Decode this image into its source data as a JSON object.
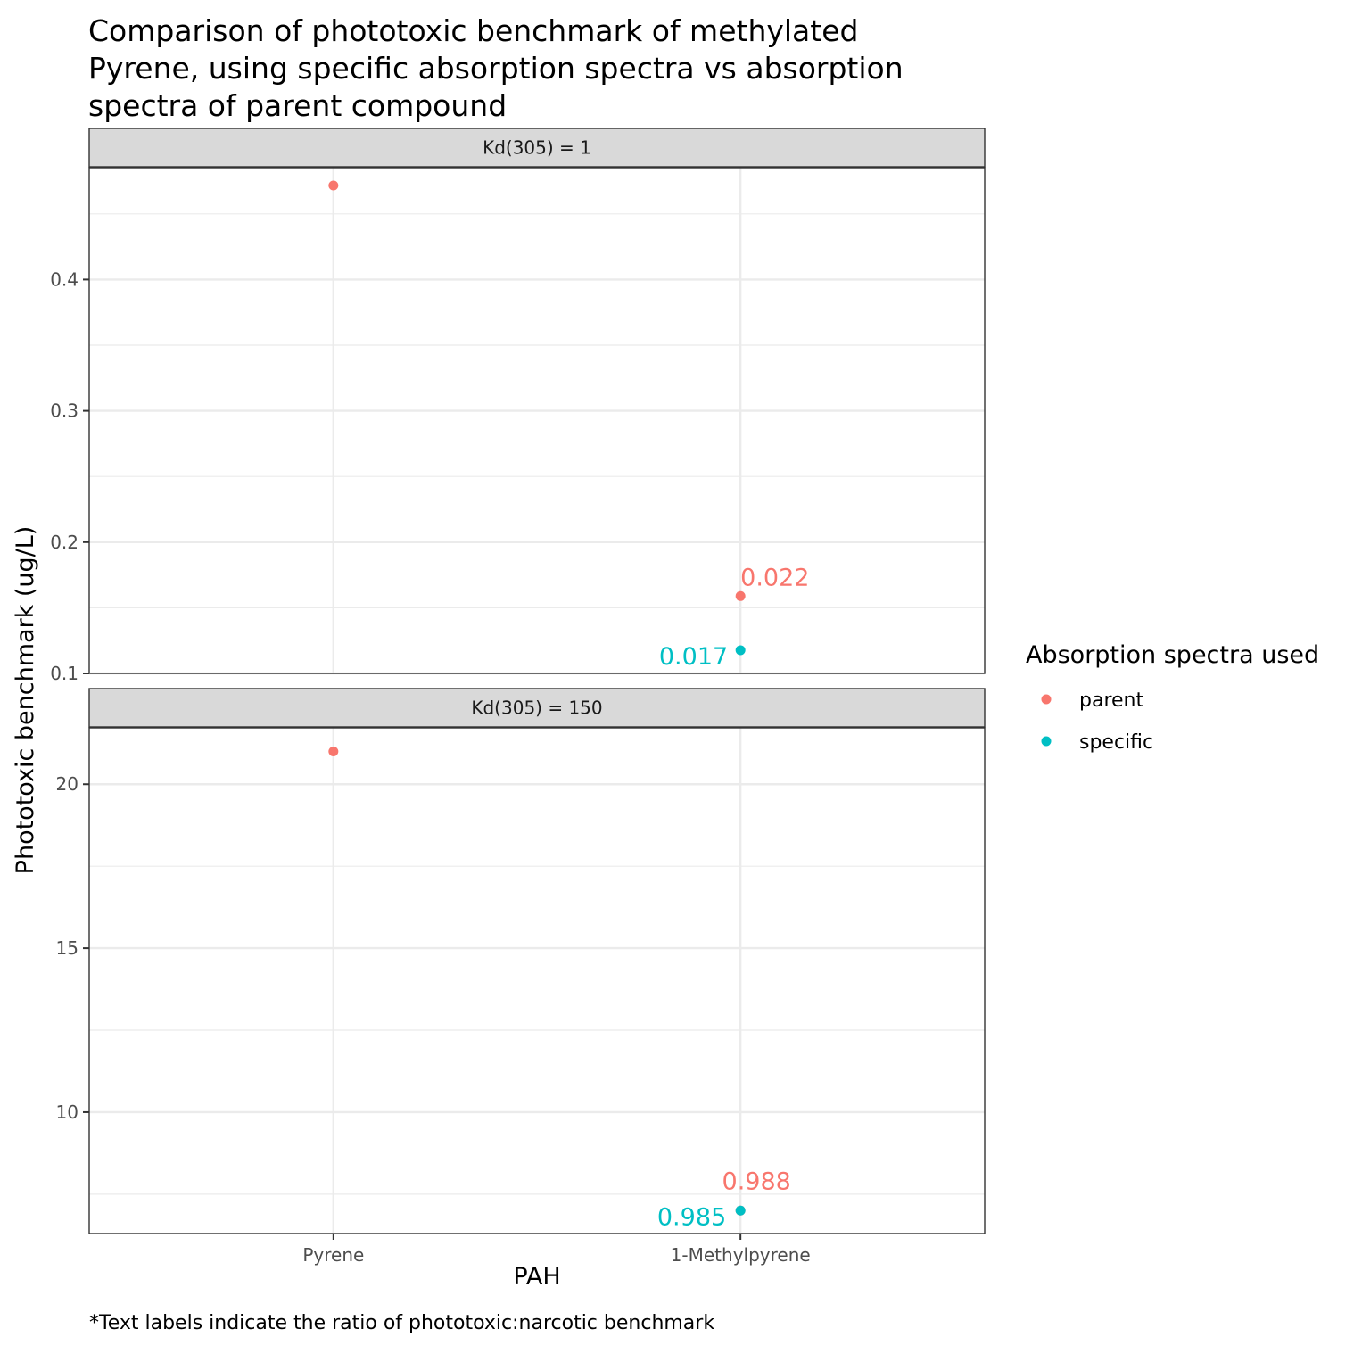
{
  "chart_data": {
    "type": "scatter",
    "title": "Comparison of phototoxic benchmark of methylated Pyrene, using specific absorption spectra vs absorption spectra of parent compound",
    "title_lines": [
      "Comparison of phototoxic benchmark of methylated",
      "Pyrene, using specific absorption spectra vs absorption",
      "spectra of parent compound"
    ],
    "xlabel": "PAH",
    "ylabel": "Phototoxic benchmark (ug/L)",
    "caption": "*Text labels indicate the ratio of phototoxic:narcotic benchmark",
    "categories": [
      "Pyrene",
      "1-Methylpyrene"
    ],
    "legend": {
      "title": "Absorption spectra used",
      "position": "right",
      "entries": [
        {
          "name": "parent",
          "color": "#F8766D"
        },
        {
          "name": "specific",
          "color": "#00BFC4"
        }
      ]
    },
    "grid": true,
    "panels": [
      {
        "strip": "Kd(305) = 1",
        "ylim": [
          0.1,
          0.4852
        ],
        "yticks": [
          0.1,
          0.2,
          0.3,
          0.4
        ],
        "yticklabels": [
          "0.1",
          "0.2",
          "0.3",
          "0.4"
        ],
        "yminor": [
          0.15,
          0.25,
          0.35,
          0.45
        ],
        "points": [
          {
            "x": "Pyrene",
            "y": 0.4716,
            "series": "parent",
            "label": ""
          },
          {
            "x": "1-Methylpyrene",
            "y": 0.1589,
            "series": "parent",
            "label": "0.022"
          },
          {
            "x": "1-Methylpyrene",
            "y": 0.1177,
            "series": "specific",
            "label": "0.017"
          }
        ]
      },
      {
        "strip": "Kd(305) = 150",
        "ylim": [
          6.3,
          21.72
        ],
        "yticks": [
          10,
          15,
          20
        ],
        "yticklabels": [
          "10",
          "15",
          "20"
        ],
        "yminor": [
          7.5,
          12.5,
          17.5
        ],
        "points": [
          {
            "x": "Pyrene",
            "y": 21.0,
            "series": "parent",
            "label": ""
          },
          {
            "x": "1-Methylpyrene",
            "y": 7.0,
            "series": "parent",
            "label": "0.988"
          },
          {
            "x": "1-Methylpyrene",
            "y": 7.0,
            "series": "specific",
            "label": "0.985"
          }
        ]
      }
    ]
  }
}
